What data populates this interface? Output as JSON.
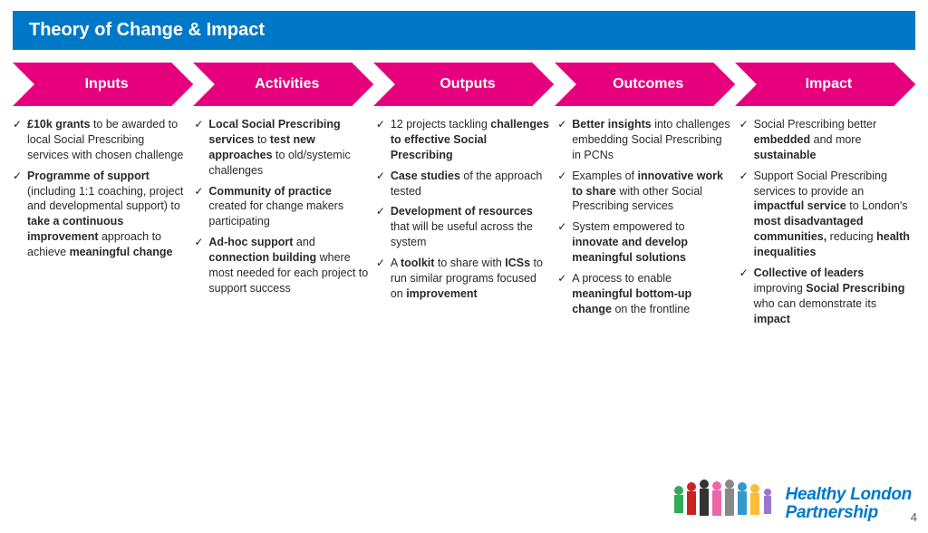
{
  "title": "Theory of Change & Impact",
  "colors": {
    "title_bg": "#0078c8",
    "arrow_fill": "#e6007e",
    "text": "#2a2a2a",
    "logo_text": "#0078c8"
  },
  "arrow_labels": [
    "Inputs",
    "Activities",
    "Outputs",
    "Outcomes",
    "Impact"
  ],
  "columns": [
    {
      "items": [
        "<b>£10k grants</b> to be awarded to local Social Prescribing services with chosen challenge",
        "<b>Programme of support</b> (including 1:1 coaching, project and developmental support) to <b>take a continuous improvement</b> approach to achieve <b>meaningful change</b>"
      ]
    },
    {
      "items": [
        "<b>Local Social Prescribing services</b> to <b>test new approaches</b> to old/systemic challenges",
        "<b>Community of practice</b> created for change makers participating",
        "<b>Ad-hoc support</b> and <b>connection building</b> where most needed for each project to support success"
      ]
    },
    {
      "items": [
        "12 projects tackling <b>challenges to effective Social Prescribing</b>",
        "<b>Case studies</b> of the approach tested",
        "<b>Development of resources</b> that will be useful across the system",
        "A <b>toolkit</b> to share with <b>ICSs</b> to run similar programs focused on <b>improvement</b>"
      ]
    },
    {
      "items": [
        "<b>Better insights</b> into challenges embedding Social Prescribing in PCNs",
        "Examples of <b>innovative work to share</b> with other Social Prescribing services",
        "System empowered to <b>innovate and develop meaningful solutions</b>",
        "A process to enable <b>meaningful bottom-up change</b> on the frontline"
      ]
    },
    {
      "items": [
        "Social Prescribing better <b>embedded</b> and more <b>sustainable</b>",
        "Support Social Prescribing services to provide an <b>impactful service</b> to London's <b>most disadvantaged communities,</b> reducing <b>health inequalities</b>",
        "<b>Collective of leaders</b> improving <b>Social Prescribing</b> who can demonstrate its <b>impact</b>"
      ]
    }
  ],
  "logo": {
    "line1": "Healthy London",
    "line2": "Partnership"
  },
  "page_number": "4"
}
